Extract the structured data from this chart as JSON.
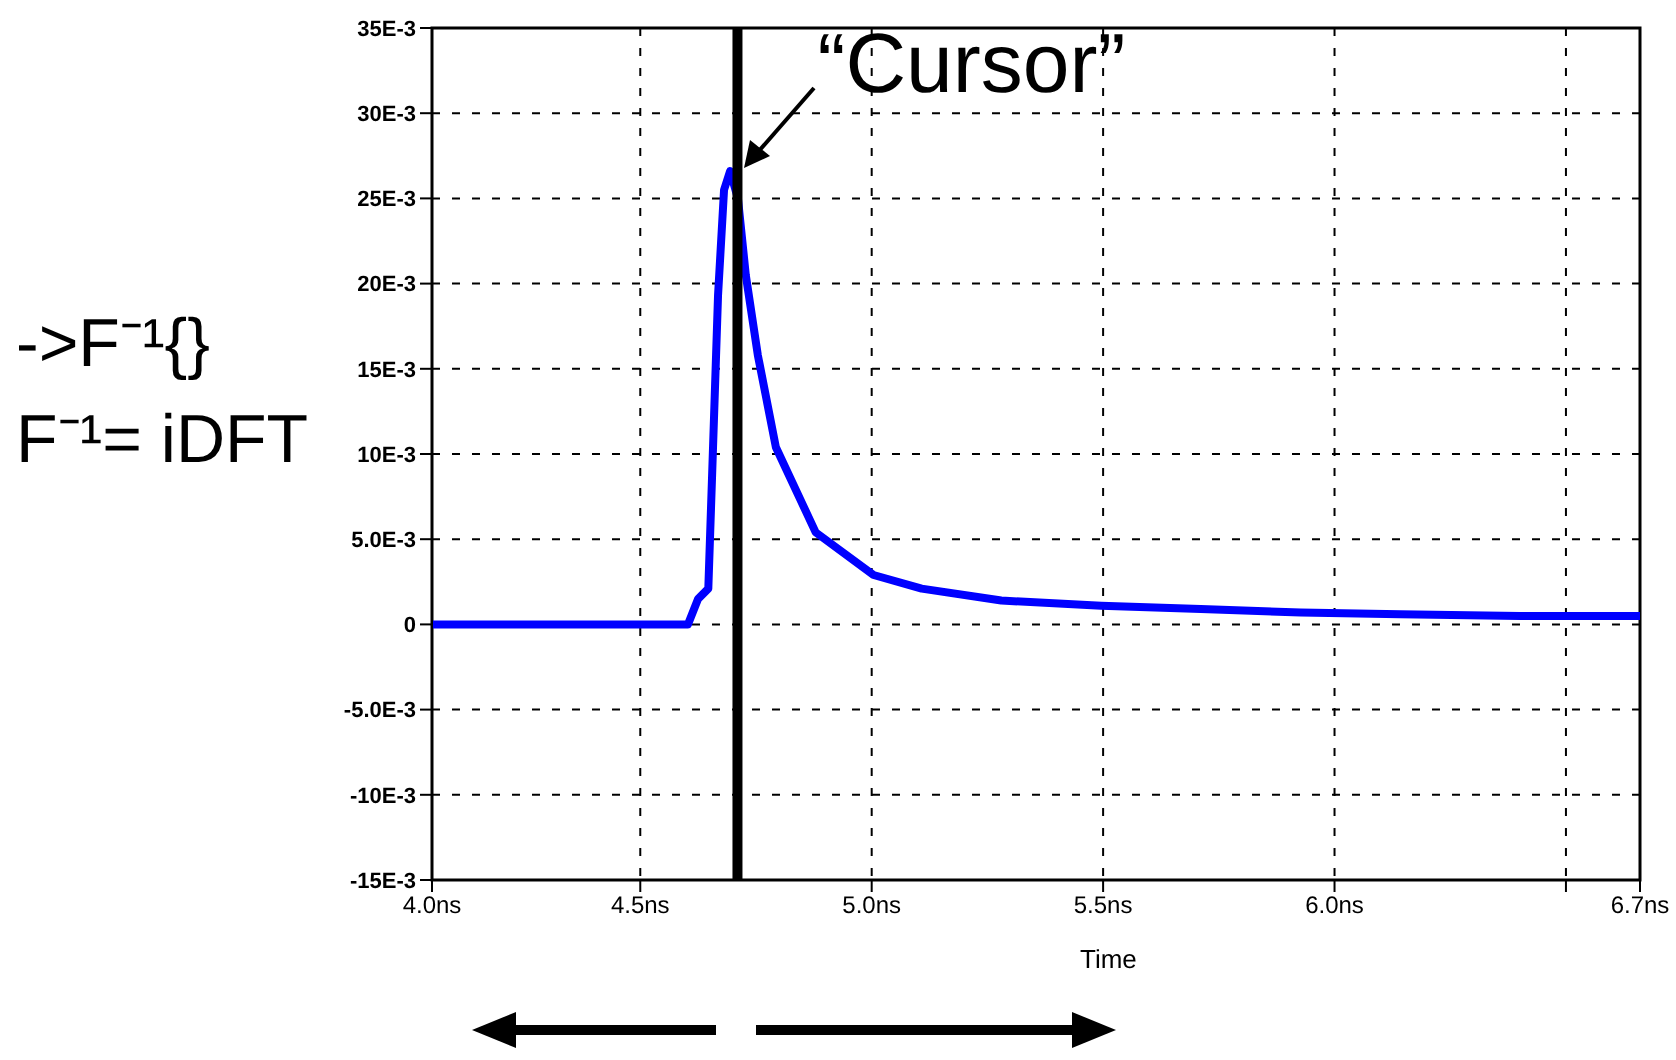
{
  "chart_data": {
    "type": "line",
    "xlabel": "Time",
    "xlim": [
      4.05,
      6.66
    ],
    "xticks": [
      {
        "value": 4.05,
        "label": "4.0ns"
      },
      {
        "value": 4.5,
        "label": "4.5ns"
      },
      {
        "value": 5.0,
        "label": "5.0ns"
      },
      {
        "value": 5.5,
        "label": "5.5ns"
      },
      {
        "value": 6.0,
        "label": "6.0ns"
      },
      {
        "value": 6.5,
        "label": null
      },
      {
        "value": 6.66,
        "label": "6.7ns"
      }
    ],
    "ylim": [
      -0.015,
      0.035
    ],
    "yticks": [
      {
        "value": -0.015,
        "label": "-15E-3"
      },
      {
        "value": -0.01,
        "label": "-10E-3"
      },
      {
        "value": -0.005,
        "label": "-5.0E-3"
      },
      {
        "value": 0,
        "label": "0"
      },
      {
        "value": 0.005,
        "label": "5.0E-3"
      },
      {
        "value": 0.01,
        "label": "10E-3"
      },
      {
        "value": 0.015,
        "label": "15E-3"
      },
      {
        "value": 0.02,
        "label": "20E-3"
      },
      {
        "value": 0.025,
        "label": "25E-3"
      },
      {
        "value": 0.03,
        "label": "30E-3"
      },
      {
        "value": 0.035,
        "label": "35E-3"
      }
    ],
    "grid": true,
    "marker": "none",
    "line_style": "solid",
    "series": [
      {
        "color": "#0000ff",
        "x": [
          4.05,
          4.3,
          4.603,
          4.625,
          4.647,
          4.655,
          4.668,
          4.681,
          4.694,
          4.711,
          4.728,
          4.754,
          4.793,
          4.879,
          5.004,
          5.108,
          5.28,
          5.496,
          5.711,
          5.927,
          6.142,
          6.401,
          6.66
        ],
        "values": [
          0,
          0,
          0,
          0.0015,
          0.0021,
          0.0086,
          0.0193,
          0.0255,
          0.0266,
          0.025,
          0.0205,
          0.0158,
          0.0104,
          0.0054,
          0.0029,
          0.0021,
          0.0014,
          0.0011,
          0.0009,
          0.0007,
          0.0006,
          0.0005,
          0.0005
        ]
      }
    ],
    "ref_lines": [
      {
        "axis": "x",
        "value": 4.71,
        "color": "#000000",
        "line_style": "solid"
      }
    ],
    "annotations": [
      {
        "text": "“Cursor”",
        "x": 4.71,
        "y": 0.0266
      },
      "->F⁻¹{}",
      "F⁻¹= iDFT"
    ]
  }
}
